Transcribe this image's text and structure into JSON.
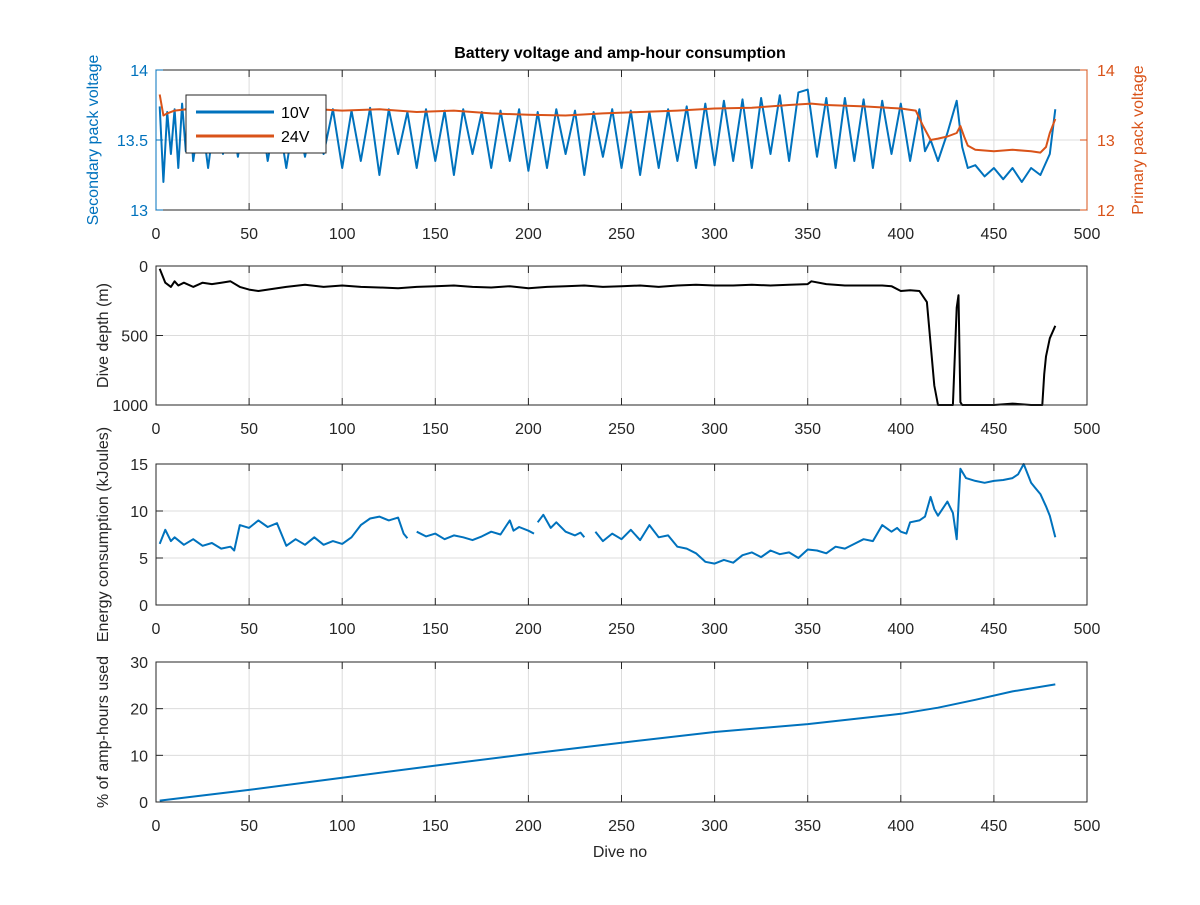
{
  "figure": {
    "title": "Battery voltage and amp-hour consumption",
    "xlabel": "Dive no"
  },
  "colors": {
    "blue": "#0072BD",
    "orange": "#D95319",
    "black": "#000000",
    "grid": "#DCDCDC",
    "axis": "#262626"
  },
  "chart_data": [
    {
      "type": "line",
      "title": "Battery voltage and amp-hour consumption",
      "xlabel": "",
      "xlim": [
        0,
        500
      ],
      "xticks": [
        0,
        50,
        100,
        150,
        200,
        250,
        300,
        350,
        400,
        450,
        500
      ],
      "ylabel": "Secondary pack voltage",
      "ylim": [
        13,
        14
      ],
      "yticks": [
        13,
        13.5,
        14
      ],
      "y2label": "Primary pack voltage",
      "y2lim": [
        12,
        14
      ],
      "y2ticks": [
        12,
        13,
        14
      ],
      "grid": true,
      "legend": {
        "placement": "top-left",
        "entries": [
          "10V",
          "24V"
        ]
      },
      "series": [
        {
          "name": "10V",
          "axis": "left",
          "color": "#0072BD",
          "x": [
            2,
            4,
            6,
            8,
            10,
            12,
            14,
            16,
            18,
            20,
            24,
            28,
            32,
            36,
            40,
            44,
            48,
            52,
            56,
            60,
            65,
            70,
            75,
            80,
            85,
            90,
            95,
            100,
            105,
            110,
            115,
            120,
            125,
            130,
            135,
            140,
            145,
            150,
            155,
            160,
            165,
            170,
            175,
            180,
            185,
            190,
            195,
            200,
            205,
            210,
            215,
            220,
            225,
            230,
            235,
            240,
            245,
            250,
            255,
            260,
            265,
            270,
            275,
            280,
            285,
            290,
            295,
            300,
            305,
            310,
            315,
            320,
            325,
            330,
            335,
            340,
            345,
            350,
            355,
            360,
            365,
            370,
            375,
            380,
            385,
            390,
            395,
            400,
            405,
            410,
            413,
            416,
            420,
            425,
            430,
            433,
            436,
            440,
            445,
            450,
            455,
            460,
            465,
            470,
            475,
            480,
            483
          ],
          "values": [
            13.74,
            13.2,
            13.7,
            13.4,
            13.72,
            13.3,
            13.76,
            13.42,
            13.72,
            13.35,
            13.71,
            13.3,
            13.72,
            13.4,
            13.72,
            13.38,
            13.7,
            13.42,
            13.72,
            13.35,
            13.72,
            13.3,
            13.73,
            13.38,
            13.72,
            13.4,
            13.72,
            13.3,
            13.71,
            13.35,
            13.73,
            13.25,
            13.72,
            13.4,
            13.7,
            13.3,
            13.72,
            13.35,
            13.71,
            13.25,
            13.72,
            13.4,
            13.7,
            13.3,
            13.71,
            13.35,
            13.72,
            13.28,
            13.7,
            13.3,
            13.72,
            13.4,
            13.71,
            13.25,
            13.7,
            13.38,
            13.72,
            13.3,
            13.71,
            13.25,
            13.7,
            13.3,
            13.72,
            13.35,
            13.74,
            13.3,
            13.76,
            13.32,
            13.78,
            13.35,
            13.79,
            13.3,
            13.8,
            13.4,
            13.82,
            13.35,
            13.84,
            13.86,
            13.38,
            13.8,
            13.3,
            13.8,
            13.35,
            13.79,
            13.3,
            13.78,
            13.4,
            13.76,
            13.35,
            13.72,
            13.42,
            13.5,
            13.35,
            13.55,
            13.78,
            13.45,
            13.3,
            13.32,
            13.24,
            13.3,
            13.22,
            13.3,
            13.2,
            13.3,
            13.25,
            13.4,
            13.72
          ]
        },
        {
          "name": "24V",
          "axis": "right",
          "color": "#D95319",
          "x": [
            2,
            4,
            6,
            10,
            20,
            40,
            60,
            80,
            100,
            120,
            140,
            160,
            180,
            200,
            220,
            240,
            260,
            280,
            300,
            320,
            340,
            352,
            360,
            380,
            400,
            408,
            412,
            416,
            420,
            425,
            430,
            432,
            434,
            436,
            440,
            450,
            460,
            470,
            475,
            478,
            480,
            483
          ],
          "values": [
            13.65,
            13.35,
            13.38,
            13.42,
            13.45,
            13.46,
            13.44,
            13.45,
            13.42,
            13.44,
            13.4,
            13.42,
            13.38,
            13.36,
            13.35,
            13.38,
            13.4,
            13.42,
            13.45,
            13.46,
            13.5,
            13.52,
            13.5,
            13.48,
            13.45,
            13.42,
            13.2,
            13.0,
            13.02,
            13.05,
            13.1,
            13.2,
            13.05,
            12.92,
            12.86,
            12.84,
            12.86,
            12.84,
            12.82,
            12.9,
            13.1,
            13.3
          ]
        }
      ]
    },
    {
      "type": "line",
      "xlabel": "",
      "xlim": [
        0,
        500
      ],
      "xticks": [
        0,
        50,
        100,
        150,
        200,
        250,
        300,
        350,
        400,
        450,
        500
      ],
      "ylabel": "Dive depth (m)",
      "ylim": [
        0,
        1000
      ],
      "y_reversed": true,
      "yticks": [
        0,
        500,
        1000
      ],
      "grid": true,
      "series": [
        {
          "color": "#000000",
          "x": [
            2,
            5,
            8,
            10,
            12,
            15,
            20,
            25,
            30,
            35,
            40,
            45,
            50,
            55,
            60,
            70,
            80,
            90,
            100,
            110,
            120,
            130,
            140,
            150,
            160,
            170,
            180,
            190,
            200,
            210,
            220,
            230,
            240,
            250,
            260,
            270,
            280,
            290,
            300,
            310,
            320,
            330,
            340,
            350,
            352,
            360,
            370,
            380,
            390,
            395,
            400,
            405,
            410,
            414,
            416,
            418,
            420,
            425,
            428,
            430,
            431,
            432,
            433,
            434,
            436,
            440,
            450,
            460,
            470,
            476,
            477,
            478,
            480,
            483
          ],
          "values": [
            20,
            120,
            150,
            110,
            140,
            120,
            150,
            120,
            130,
            120,
            110,
            150,
            170,
            180,
            170,
            150,
            135,
            150,
            140,
            150,
            155,
            160,
            150,
            145,
            140,
            150,
            155,
            145,
            160,
            150,
            145,
            140,
            150,
            145,
            140,
            150,
            140,
            135,
            140,
            140,
            135,
            140,
            135,
            130,
            110,
            130,
            140,
            140,
            140,
            145,
            180,
            175,
            180,
            260,
            560,
            860,
            1000,
            1000,
            1000,
            300,
            210,
            980,
            1000,
            1000,
            1000,
            1000,
            1000,
            990,
            1000,
            1000,
            780,
            650,
            520,
            430
          ]
        }
      ]
    },
    {
      "type": "line",
      "xlabel": "",
      "xlim": [
        0,
        500
      ],
      "xticks": [
        0,
        50,
        100,
        150,
        200,
        250,
        300,
        350,
        400,
        450,
        500
      ],
      "ylabel": "Energy consumption (kJoules)",
      "ylim": [
        0,
        15
      ],
      "yticks": [
        0,
        5,
        10,
        15
      ],
      "grid": true,
      "series": [
        {
          "color": "#0072BD",
          "segments": [
            {
              "x": [
                2,
                5,
                8,
                10,
                15,
                20,
                25,
                30,
                35,
                40,
                42,
                45,
                50,
                55,
                60,
                65,
                70,
                75,
                80,
                85,
                90,
                95,
                100,
                105,
                110,
                115,
                120,
                125,
                130,
                133,
                135
              ],
              "values": [
                6.5,
                8.0,
                6.8,
                7.2,
                6.4,
                7.0,
                6.3,
                6.6,
                6.0,
                6.2,
                5.8,
                8.5,
                8.2,
                9.0,
                8.3,
                8.7,
                6.3,
                7.0,
                6.4,
                7.2,
                6.4,
                6.8,
                6.5,
                7.2,
                8.5,
                9.2,
                9.4,
                9.0,
                9.3,
                7.6,
                7.1
              ]
            },
            {
              "x": [
                140,
                145,
                150,
                155,
                160,
                165,
                170,
                175,
                180,
                185,
                190,
                192,
                195,
                200,
                203
              ],
              "values": [
                7.8,
                7.3,
                7.6,
                7.0,
                7.4,
                7.2,
                6.9,
                7.3,
                7.8,
                7.5,
                9.0,
                7.9,
                8.3,
                7.9,
                7.6
              ]
            },
            {
              "x": [
                205,
                208,
                212,
                215,
                220,
                225,
                228,
                230
              ],
              "values": [
                8.8,
                9.6,
                8.2,
                8.8,
                7.8,
                7.4,
                7.7,
                7.2
              ]
            },
            {
              "x": [
                236,
                240,
                245,
                250,
                255,
                260,
                265,
                270,
                275,
                280,
                285,
                290,
                295,
                300,
                305,
                310,
                315,
                320,
                325,
                330,
                335,
                340,
                345,
                350,
                355,
                360,
                365,
                370,
                375,
                380,
                385,
                390,
                395,
                398,
                400,
                403,
                405,
                410,
                413,
                416,
                418,
                420,
                425,
                428,
                430,
                432,
                435,
                440,
                445,
                450,
                455,
                460,
                463,
                466,
                470,
                472,
                475,
                478,
                480,
                483
              ],
              "values": [
                7.8,
                6.8,
                7.6,
                7.0,
                8.0,
                6.9,
                8.5,
                7.2,
                7.4,
                6.2,
                6.0,
                5.5,
                4.6,
                4.4,
                4.8,
                4.5,
                5.3,
                5.6,
                5.1,
                5.8,
                5.4,
                5.6,
                5.0,
                5.9,
                5.8,
                5.5,
                6.2,
                6.0,
                6.5,
                7.0,
                6.8,
                8.5,
                7.8,
                8.2,
                7.8,
                7.6,
                8.8,
                9.0,
                9.4,
                11.5,
                10.2,
                9.5,
                11.0,
                9.8,
                7.0,
                14.5,
                13.5,
                13.2,
                13.0,
                13.2,
                13.3,
                13.5,
                13.9,
                15.0,
                13.0,
                12.5,
                11.8,
                10.5,
                9.5,
                7.2
              ]
            }
          ]
        }
      ]
    },
    {
      "type": "line",
      "xlabel": "Dive no",
      "xlim": [
        0,
        500
      ],
      "xticks": [
        0,
        50,
        100,
        150,
        200,
        250,
        300,
        350,
        400,
        450,
        500
      ],
      "ylabel": "% of amp-hours used",
      "ylim": [
        0,
        30
      ],
      "yticks": [
        0,
        10,
        20,
        30
      ],
      "grid": true,
      "series": [
        {
          "color": "#0072BD",
          "x": [
            2,
            50,
            100,
            150,
            200,
            250,
            300,
            350,
            400,
            420,
            440,
            460,
            483
          ],
          "values": [
            0.3,
            2.6,
            5.2,
            7.8,
            10.3,
            12.7,
            15.0,
            16.7,
            18.9,
            20.2,
            21.9,
            23.7,
            25.2
          ]
        }
      ]
    }
  ]
}
